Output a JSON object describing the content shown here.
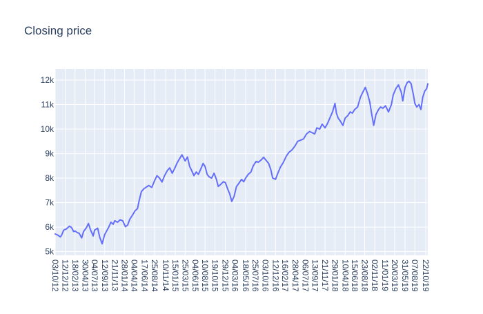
{
  "chart_data": {
    "type": "line",
    "title": "Closing price",
    "xlabel": "",
    "ylabel": "",
    "ylim": [
      4850,
      12450
    ],
    "xlim": [
      "2012-10-03",
      "2019-11-05"
    ],
    "y_ticks": [
      {
        "value": 5000,
        "label": "5k"
      },
      {
        "value": 6000,
        "label": "6k"
      },
      {
        "value": 7000,
        "label": "7k"
      },
      {
        "value": 8000,
        "label": "8k"
      },
      {
        "value": 9000,
        "label": "9k"
      },
      {
        "value": 10000,
        "label": "10k"
      },
      {
        "value": 11000,
        "label": "11k"
      },
      {
        "value": 12000,
        "label": "12k"
      }
    ],
    "x_ticks": [
      {
        "date": "2012-10-03",
        "label": "03/10/12"
      },
      {
        "date": "2012-12-12",
        "label": "12/12/12"
      },
      {
        "date": "2013-02-18",
        "label": "18/02/13"
      },
      {
        "date": "2013-04-30",
        "label": "30/04/13"
      },
      {
        "date": "2013-07-04",
        "label": "04/07/13"
      },
      {
        "date": "2013-09-12",
        "label": "12/09/13"
      },
      {
        "date": "2013-11-21",
        "label": "21/11/13"
      },
      {
        "date": "2014-01-28",
        "label": "28/01/14"
      },
      {
        "date": "2014-04-04",
        "label": "04/04/14"
      },
      {
        "date": "2014-06-17",
        "label": "17/06/14"
      },
      {
        "date": "2014-08-25",
        "label": "25/08/14"
      },
      {
        "date": "2014-11-10",
        "label": "10/11/14"
      },
      {
        "date": "2015-01-15",
        "label": "15/01/15"
      },
      {
        "date": "2015-03-25",
        "label": "25/03/15"
      },
      {
        "date": "2015-06-04",
        "label": "04/06/15"
      },
      {
        "date": "2015-08-10",
        "label": "10/08/15"
      },
      {
        "date": "2015-10-19",
        "label": "19/10/15"
      },
      {
        "date": "2015-12-29",
        "label": "29/12/15"
      },
      {
        "date": "2016-03-04",
        "label": "04/03/16"
      },
      {
        "date": "2016-05-18",
        "label": "18/05/16"
      },
      {
        "date": "2016-07-25",
        "label": "25/07/16"
      },
      {
        "date": "2016-10-03",
        "label": "03/10/16"
      },
      {
        "date": "2016-12-12",
        "label": "12/12/16"
      },
      {
        "date": "2017-02-16",
        "label": "16/02/17"
      },
      {
        "date": "2017-04-28",
        "label": "28/04/17"
      },
      {
        "date": "2017-07-06",
        "label": "06/07/17"
      },
      {
        "date": "2017-09-13",
        "label": "13/09/17"
      },
      {
        "date": "2017-11-21",
        "label": "21/11/17"
      },
      {
        "date": "2018-01-29",
        "label": "29/01/18"
      },
      {
        "date": "2018-04-10",
        "label": "10/04/18"
      },
      {
        "date": "2018-06-15",
        "label": "15/06/18"
      },
      {
        "date": "2018-08-23",
        "label": "23/08/18"
      },
      {
        "date": "2018-11-02",
        "label": "02/11/18"
      },
      {
        "date": "2019-01-11",
        "label": "11/01/19"
      },
      {
        "date": "2019-03-20",
        "label": "20/03/19"
      },
      {
        "date": "2019-05-31",
        "label": "31/05/19"
      },
      {
        "date": "2019-08-07",
        "label": "07/08/19"
      },
      {
        "date": "2019-10-22",
        "label": "22/10/19"
      }
    ],
    "series": [
      {
        "color": "#636efa",
        "points": [
          [
            "2012-10-03",
            5720
          ],
          [
            "2012-10-20",
            5680
          ],
          [
            "2012-11-08",
            5600
          ],
          [
            "2012-11-18",
            5690
          ],
          [
            "2012-12-01",
            5880
          ],
          [
            "2012-12-18",
            5920
          ],
          [
            "2013-01-10",
            6040
          ],
          [
            "2013-01-25",
            5980
          ],
          [
            "2013-02-08",
            5820
          ],
          [
            "2013-02-18",
            5840
          ],
          [
            "2013-03-05",
            5780
          ],
          [
            "2013-03-19",
            5750
          ],
          [
            "2013-04-05",
            5560
          ],
          [
            "2013-04-18",
            5820
          ],
          [
            "2013-05-08",
            5980
          ],
          [
            "2013-05-22",
            6150
          ],
          [
            "2013-06-05",
            5900
          ],
          [
            "2013-06-24",
            5640
          ],
          [
            "2013-07-04",
            5880
          ],
          [
            "2013-07-25",
            5960
          ],
          [
            "2013-08-08",
            5600
          ],
          [
            "2013-08-25",
            5320
          ],
          [
            "2013-09-12",
            5700
          ],
          [
            "2013-10-10",
            6000
          ],
          [
            "2013-10-25",
            6200
          ],
          [
            "2013-11-10",
            6120
          ],
          [
            "2013-11-21",
            6260
          ],
          [
            "2013-12-10",
            6200
          ],
          [
            "2013-12-28",
            6300
          ],
          [
            "2014-01-15",
            6260
          ],
          [
            "2014-02-03",
            6020
          ],
          [
            "2014-02-18",
            6080
          ],
          [
            "2014-03-05",
            6320
          ],
          [
            "2014-03-25",
            6500
          ],
          [
            "2014-04-10",
            6660
          ],
          [
            "2014-04-28",
            6760
          ],
          [
            "2014-05-10",
            7100
          ],
          [
            "2014-05-25",
            7450
          ],
          [
            "2014-06-10",
            7560
          ],
          [
            "2014-06-25",
            7620
          ],
          [
            "2014-07-15",
            7700
          ],
          [
            "2014-08-05",
            7620
          ],
          [
            "2014-08-25",
            7900
          ],
          [
            "2014-09-10",
            8100
          ],
          [
            "2014-09-28",
            8000
          ],
          [
            "2014-10-15",
            7840
          ],
          [
            "2014-11-02",
            8100
          ],
          [
            "2014-11-20",
            8300
          ],
          [
            "2014-12-08",
            8420
          ],
          [
            "2014-12-25",
            8200
          ],
          [
            "2015-01-10",
            8380
          ],
          [
            "2015-01-28",
            8620
          ],
          [
            "2015-02-15",
            8800
          ],
          [
            "2015-03-03",
            8950
          ],
          [
            "2015-03-25",
            8700
          ],
          [
            "2015-04-10",
            8860
          ],
          [
            "2015-04-25",
            8480
          ],
          [
            "2015-05-10",
            8300
          ],
          [
            "2015-05-25",
            8100
          ],
          [
            "2015-06-10",
            8250
          ],
          [
            "2015-06-25",
            8150
          ],
          [
            "2015-07-10",
            8350
          ],
          [
            "2015-07-28",
            8600
          ],
          [
            "2015-08-10",
            8480
          ],
          [
            "2015-08-25",
            8150
          ],
          [
            "2015-09-08",
            8050
          ],
          [
            "2015-09-25",
            8000
          ],
          [
            "2015-10-12",
            8200
          ],
          [
            "2015-10-28",
            7950
          ],
          [
            "2015-11-10",
            7660
          ],
          [
            "2015-11-28",
            7750
          ],
          [
            "2015-12-15",
            7850
          ],
          [
            "2015-12-29",
            7820
          ],
          [
            "2016-01-15",
            7550
          ],
          [
            "2016-01-29",
            7350
          ],
          [
            "2016-02-12",
            7050
          ],
          [
            "2016-02-28",
            7250
          ],
          [
            "2016-03-15",
            7650
          ],
          [
            "2016-04-05",
            7820
          ],
          [
            "2016-04-20",
            7950
          ],
          [
            "2016-05-05",
            7850
          ],
          [
            "2016-05-18",
            8000
          ],
          [
            "2016-06-05",
            8150
          ],
          [
            "2016-06-24",
            8250
          ],
          [
            "2016-07-10",
            8500
          ],
          [
            "2016-07-30",
            8680
          ],
          [
            "2016-08-15",
            8650
          ],
          [
            "2016-09-05",
            8750
          ],
          [
            "2016-09-20",
            8850
          ],
          [
            "2016-10-08",
            8720
          ],
          [
            "2016-10-25",
            8600
          ],
          [
            "2016-11-09",
            8350
          ],
          [
            "2016-11-22",
            8000
          ],
          [
            "2016-12-12",
            7950
          ],
          [
            "2016-12-28",
            8200
          ],
          [
            "2017-01-15",
            8450
          ],
          [
            "2017-02-05",
            8650
          ],
          [
            "2017-02-25",
            8900
          ],
          [
            "2017-03-15",
            9050
          ],
          [
            "2017-04-05",
            9150
          ],
          [
            "2017-04-25",
            9300
          ],
          [
            "2017-05-15",
            9500
          ],
          [
            "2017-06-05",
            9550
          ],
          [
            "2017-06-25",
            9600
          ],
          [
            "2017-07-15",
            9800
          ],
          [
            "2017-08-05",
            9900
          ],
          [
            "2017-08-25",
            9850
          ],
          [
            "2017-09-10",
            9800
          ],
          [
            "2017-09-25",
            10050
          ],
          [
            "2017-10-15",
            10000
          ],
          [
            "2017-11-01",
            10200
          ],
          [
            "2017-11-21",
            10050
          ],
          [
            "2017-12-10",
            10250
          ],
          [
            "2017-12-28",
            10500
          ],
          [
            "2018-01-12",
            10700
          ],
          [
            "2018-01-29",
            11050
          ],
          [
            "2018-02-08",
            10650
          ],
          [
            "2018-02-20",
            10450
          ],
          [
            "2018-03-10",
            10300
          ],
          [
            "2018-03-25",
            10150
          ],
          [
            "2018-04-10",
            10450
          ],
          [
            "2018-04-28",
            10550
          ],
          [
            "2018-05-15",
            10700
          ],
          [
            "2018-05-30",
            10650
          ],
          [
            "2018-06-15",
            10800
          ],
          [
            "2018-07-05",
            10900
          ],
          [
            "2018-07-25",
            11300
          ],
          [
            "2018-08-10",
            11500
          ],
          [
            "2018-08-28",
            11700
          ],
          [
            "2018-09-12",
            11450
          ],
          [
            "2018-09-28",
            11100
          ],
          [
            "2018-10-10",
            10650
          ],
          [
            "2018-10-25",
            10150
          ],
          [
            "2018-11-10",
            10600
          ],
          [
            "2018-11-28",
            10800
          ],
          [
            "2018-12-12",
            10900
          ],
          [
            "2018-12-28",
            10850
          ],
          [
            "2019-01-15",
            10950
          ],
          [
            "2019-02-05",
            10700
          ],
          [
            "2019-02-25",
            11000
          ],
          [
            "2019-03-10",
            11400
          ],
          [
            "2019-03-28",
            11650
          ],
          [
            "2019-04-15",
            11800
          ],
          [
            "2019-05-05",
            11500
          ],
          [
            "2019-05-15",
            11150
          ],
          [
            "2019-05-31",
            11700
          ],
          [
            "2019-06-15",
            11900
          ],
          [
            "2019-06-28",
            11950
          ],
          [
            "2019-07-12",
            11850
          ],
          [
            "2019-07-28",
            11400
          ],
          [
            "2019-08-07",
            11050
          ],
          [
            "2019-08-20",
            10900
          ],
          [
            "2019-09-05",
            11000
          ],
          [
            "2019-09-18",
            10800
          ],
          [
            "2019-10-01",
            11300
          ],
          [
            "2019-10-15",
            11550
          ],
          [
            "2019-10-28",
            11650
          ],
          [
            "2019-11-05",
            11850
          ]
        ]
      }
    ]
  }
}
